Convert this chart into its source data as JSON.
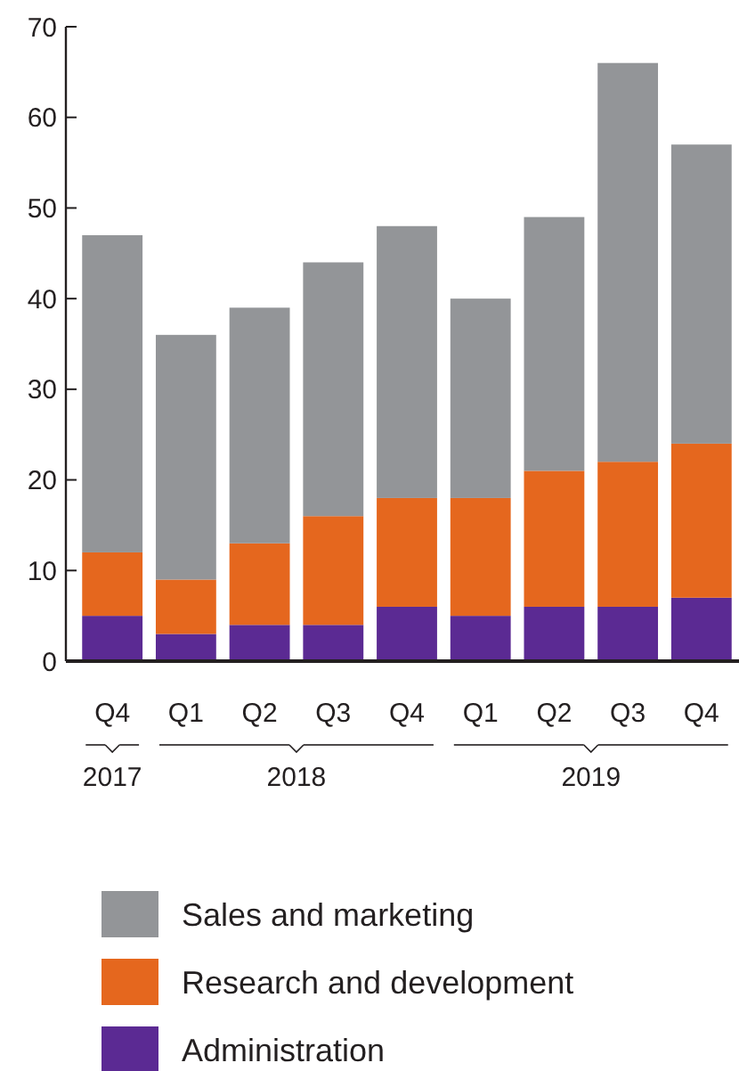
{
  "chart_data": {
    "type": "bar",
    "stacked": true,
    "categories": [
      "Q4",
      "Q1",
      "Q2",
      "Q3",
      "Q4",
      "Q1",
      "Q2",
      "Q3",
      "Q4"
    ],
    "series": [
      {
        "name": "Administration",
        "color": "#5b2a93",
        "values": [
          5,
          3,
          4,
          4,
          6,
          5,
          6,
          6,
          7
        ]
      },
      {
        "name": "Research and development",
        "color": "#e5671e",
        "values": [
          7,
          6,
          9,
          12,
          12,
          13,
          15,
          16,
          17
        ]
      },
      {
        "name": "Sales and marketing",
        "color": "#939598",
        "values": [
          35,
          27,
          26,
          28,
          30,
          22,
          28,
          44,
          33
        ]
      }
    ],
    "ylim": [
      0,
      70
    ],
    "yticks": [
      0,
      10,
      20,
      30,
      40,
      50,
      60,
      70
    ],
    "grid": false,
    "legend": "bottom",
    "annotations": [
      "2017",
      "2018",
      "2019"
    ]
  }
}
